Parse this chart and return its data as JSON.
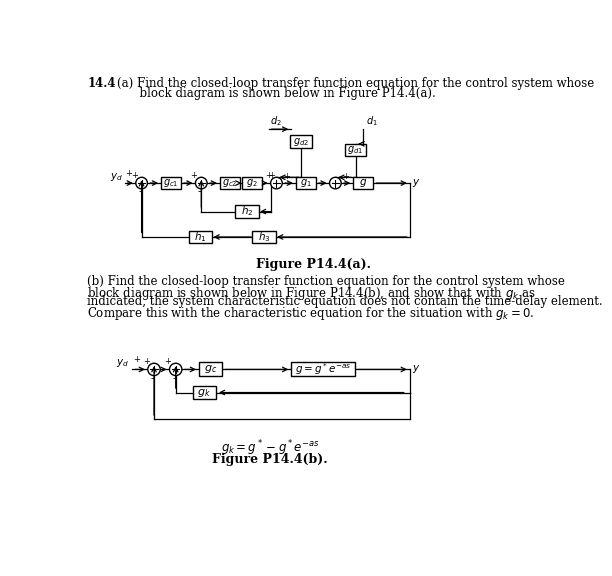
{
  "title_number": "14.4",
  "part_a_line1": "(a) Find the closed-loop transfer function equation for the control system whose",
  "part_a_line2": "      block diagram is shown below in Figure P14.4(a).",
  "part_b_line1": "(b) Find the closed-loop transfer function equation for the control system whose",
  "part_b_line2": "block diagram is shown below in Figure P14.4(b), and show that with $g_k$ as",
  "part_b_line3": "indicated, the system characteristic equation does not contain the time-delay element.",
  "part_b_line4": "Compare this with the characteristic equation for the situation with $g_k = 0$.",
  "fig_a_caption": "Figure P14.4(a).",
  "fig_b_caption": "Figure P14.4(b).",
  "gk_eq": "$g_k = g^* - g^*e^{-as}$",
  "bg_color": "#ffffff"
}
